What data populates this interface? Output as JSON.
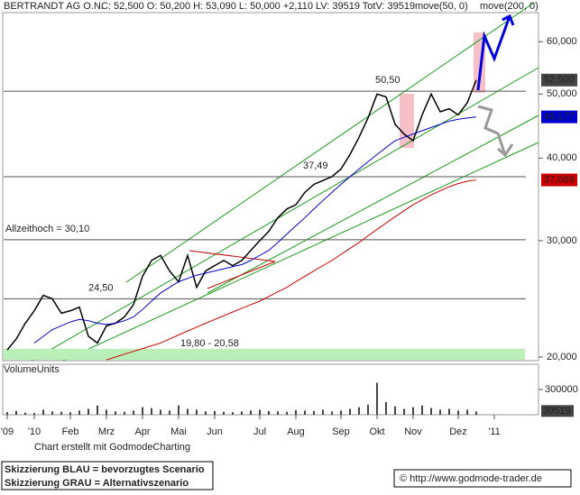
{
  "chart_data": {
    "type": "line",
    "title": "BERTRANDT AG O.N.",
    "quote": "C: 52,500  O: 50,200  H: 53,090  L: 50,000  +2,110  LV: 39519  TotV: 39519",
    "log_y": true,
    "ylim": [
      19750,
      66400
    ],
    "yticks": [
      {
        "value": 20000,
        "label": "20,000"
      },
      {
        "value": 30000,
        "label": "30,000"
      },
      {
        "value": 40000,
        "label": "40,000"
      },
      {
        "value": 50000,
        "label": "50,000"
      },
      {
        "value": 60000,
        "label": "60,000"
      }
    ],
    "categories": [
      "'09",
      null,
      null,
      "'10",
      null,
      null,
      null,
      "Feb",
      null,
      null,
      null,
      "Mrz",
      null,
      null,
      null,
      "Apr",
      null,
      null,
      null,
      "Mai",
      null,
      null,
      null,
      "Jun",
      null,
      null,
      null,
      null,
      "Jul",
      null,
      null,
      null,
      "Aug",
      null,
      null,
      null,
      null,
      "Sep",
      null,
      null,
      null,
      "Okt",
      null,
      null,
      null,
      "Nov",
      null,
      null,
      null,
      null,
      "Dez",
      null,
      null,
      null,
      "'11"
    ],
    "series": [
      {
        "color": "#000000",
        "values": [
          20500,
          21300,
          22500,
          23500,
          24800,
          24500,
          23300,
          23500,
          23800,
          21500,
          21000,
          22300,
          22500,
          23000,
          24000,
          26500,
          28000,
          28500,
          27000,
          26000,
          28500,
          25500,
          27000,
          27500,
          28000,
          27500,
          28000,
          29000,
          30000,
          31000,
          32500,
          33500,
          34000,
          35500,
          36500,
          37000,
          37500,
          38500,
          40500,
          43000,
          46000,
          50000,
          49500,
          45000,
          43500,
          42500,
          46500,
          50000,
          47000,
          47500,
          46500,
          48500,
          52500,
          null,
          null
        ]
      },
      {
        "name": "move(50, 0)",
        "color": "#0000cc",
        "values": [
          null,
          null,
          null,
          21000,
          21500,
          22000,
          22300,
          22600,
          22800,
          22700,
          22500,
          22400,
          22500,
          22700,
          23000,
          23600,
          24300,
          25000,
          25500,
          26000,
          26300,
          26600,
          26800,
          27000,
          27200,
          27400,
          27600,
          28000,
          28500,
          29000,
          29800,
          30700,
          31600,
          32500,
          33500,
          34500,
          35500,
          36500,
          37500,
          38500,
          39500,
          40500,
          41500,
          42500,
          43000,
          43500,
          44000,
          44500,
          45000,
          45500,
          45800,
          46000,
          46177,
          null,
          null
        ]
      },
      {
        "name": "move(200, 0)",
        "color": "#cc0000",
        "values": [
          null,
          null,
          null,
          null,
          null,
          null,
          null,
          null,
          null,
          null,
          null,
          19800,
          20000,
          20200,
          20400,
          20600,
          20800,
          21000,
          21300,
          21600,
          21900,
          22200,
          22500,
          22800,
          23100,
          23400,
          23700,
          24000,
          24300,
          24700,
          25100,
          25500,
          26000,
          26500,
          27000,
          27500,
          28000,
          28600,
          29200,
          29800,
          30500,
          31200,
          31900,
          32600,
          33300,
          34000,
          34600,
          35200,
          35700,
          36200,
          36600,
          36900,
          37069,
          null,
          null
        ]
      }
    ],
    "price_labels": [
      {
        "value": 52500,
        "label": "52,500",
        "color": "#444444"
      },
      {
        "value": 46177,
        "label": "46,177",
        "color": "#0000cc"
      },
      {
        "value": 37069,
        "label": "37,069",
        "color": "#cc0000"
      }
    ],
    "levels": [
      {
        "value": 50500,
        "label": "50,50"
      },
      {
        "value": 37490,
        "label": "37,49"
      },
      {
        "value": 30100,
        "label": "Allzeithoch = 30,10"
      },
      {
        "value": 24500,
        "label": "24,50"
      }
    ],
    "zone": {
      "from": 19800,
      "to": 20580,
      "label": "19,80 - 20,58",
      "color": "#b8f0b8"
    },
    "volume": {
      "label": "VolumeUnits",
      "ylim": [
        0,
        600000
      ],
      "yticks": [
        300000
      ],
      "values": [
        30000,
        45000,
        25000,
        20000,
        60000,
        40000,
        35000,
        30000,
        50000,
        70000,
        110000,
        60000,
        40000,
        35000,
        50000,
        90000,
        80000,
        60000,
        50000,
        110000,
        70000,
        60000,
        40000,
        45000,
        35000,
        30000,
        40000,
        50000,
        60000,
        45000,
        40000,
        35000,
        55000,
        50000,
        45000,
        60000,
        40000,
        50000,
        70000,
        90000,
        120000,
        380000,
        150000,
        100000,
        70000,
        90000,
        110000,
        80000,
        60000,
        70000,
        50000,
        60000,
        39519,
        null,
        null
      ],
      "last_label": {
        "value": 39519,
        "label": "39519"
      }
    },
    "footer": "Chart erstellt mit GodmodeCharting",
    "notes": [
      "Skizzierung BLAU = bevorzugtes Scenario",
      "Skizzierung GRAU = Alternativszenario"
    ],
    "source": "© http://www.godmode-trader.de"
  }
}
